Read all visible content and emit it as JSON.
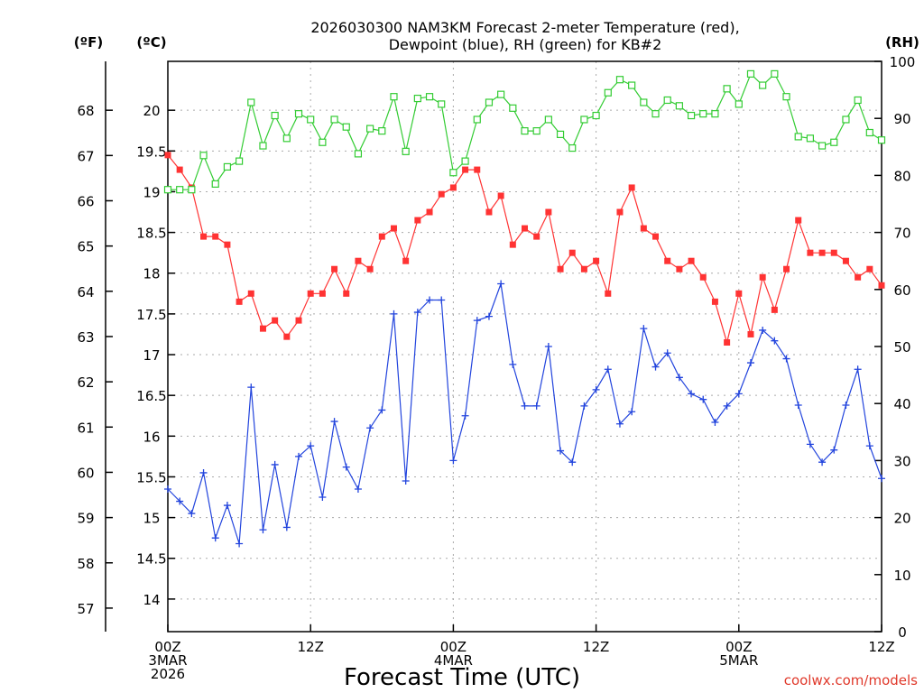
{
  "chart_data": {
    "type": "line",
    "title_lines": [
      "2026030300 NAM3KM Forecast 2-meter Temperature (red),",
      "Dewpoint (blue), RH (green) for KB#2"
    ],
    "xlabel": "Forecast Time (UTC)",
    "credit": "coolwx.com/models",
    "unit_labels": {
      "fahrenheit": "(ºF)",
      "celsius": "(ºC)",
      "rh": "(RH)"
    },
    "x_range_hours": [
      0,
      60
    ],
    "x_ticks": [
      {
        "hour": 0,
        "lines": [
          "00Z",
          "3MAR",
          "2026"
        ]
      },
      {
        "hour": 12,
        "lines": [
          "12Z"
        ]
      },
      {
        "hour": 24,
        "lines": [
          "00Z",
          "4MAR"
        ]
      },
      {
        "hour": 36,
        "lines": [
          "12Z"
        ]
      },
      {
        "hour": 48,
        "lines": [
          "00Z",
          "5MAR"
        ]
      },
      {
        "hour": 60,
        "lines": [
          "12Z"
        ]
      }
    ],
    "celsius_axis": {
      "min": 13.6,
      "max": 20.6,
      "ticks": [
        "14",
        "14.5",
        "15",
        "15.5",
        "16",
        "16.5",
        "17",
        "17.5",
        "18",
        "18.5",
        "19",
        "19.5",
        "20"
      ]
    },
    "fahrenheit_ticks": [
      "57",
      "58",
      "59",
      "60",
      "61",
      "62",
      "63",
      "64",
      "65",
      "66",
      "67",
      "68"
    ],
    "rh_axis": {
      "min": 0,
      "max": 100,
      "ticks": [
        "0",
        "10",
        "20",
        "30",
        "40",
        "50",
        "60",
        "70",
        "80",
        "90",
        "100"
      ]
    },
    "series": [
      {
        "name": "2-meter Temperature",
        "unit": "C",
        "color": "#ff3333",
        "marker": "filled-square",
        "values": [
          19.45,
          19.27,
          19.05,
          18.45,
          18.45,
          18.35,
          17.65,
          17.75,
          17.32,
          17.42,
          17.22,
          17.42,
          17.75,
          17.75,
          18.05,
          17.75,
          18.15,
          18.05,
          18.45,
          18.55,
          18.15,
          18.65,
          18.75,
          18.97,
          19.05,
          19.27,
          19.27,
          18.75,
          18.95,
          18.35,
          18.55,
          18.45,
          18.75,
          18.05,
          18.25,
          18.05,
          18.15,
          17.75,
          18.75,
          19.05,
          18.55,
          18.45,
          18.15,
          18.05,
          18.15,
          17.95,
          17.65,
          17.15,
          17.75,
          17.25,
          17.95,
          17.55,
          18.05,
          18.65,
          18.25,
          18.25,
          18.25,
          18.15,
          17.95,
          18.05,
          17.85
        ]
      },
      {
        "name": "Dewpoint",
        "unit": "C",
        "color": "#2244dd",
        "marker": "plus",
        "values": [
          15.35,
          15.2,
          15.05,
          15.55,
          14.75,
          15.15,
          14.68,
          16.6,
          14.85,
          15.65,
          14.88,
          15.75,
          15.88,
          15.25,
          16.18,
          15.62,
          15.35,
          16.1,
          16.32,
          17.5,
          15.45,
          17.52,
          17.67,
          17.67,
          15.7,
          16.25,
          17.42,
          17.47,
          17.87,
          16.88,
          16.37,
          16.37,
          17.1,
          15.82,
          15.68,
          16.37,
          16.57,
          16.82,
          16.15,
          16.3,
          17.32,
          16.85,
          17.02,
          16.72,
          16.52,
          16.45,
          16.17,
          16.37,
          16.52,
          16.9,
          17.3,
          17.17,
          16.95,
          16.38,
          15.9,
          15.68,
          15.83,
          16.38,
          16.82,
          15.88,
          15.48
        ]
      },
      {
        "name": "RH",
        "unit": "%",
        "color": "#33cc33",
        "marker": "open-square",
        "values": [
          77.5,
          77.5,
          77.5,
          83.5,
          78.5,
          81.5,
          82.5,
          92.8,
          85.2,
          90.5,
          86.5,
          90.8,
          89.8,
          85.8,
          89.8,
          88.5,
          83.8,
          88.2,
          87.8,
          93.8,
          84.2,
          93.5,
          93.8,
          92.5,
          80.5,
          82.5,
          89.8,
          92.8,
          94.2,
          91.8,
          87.8,
          87.8,
          89.8,
          87.2,
          84.8,
          89.8,
          90.5,
          94.5,
          96.8,
          95.8,
          92.8,
          90.8,
          93.2,
          92.2,
          90.5,
          90.8,
          90.8,
          95.2,
          92.5,
          97.8,
          95.8,
          97.8,
          93.8,
          86.8,
          86.5,
          85.2,
          85.8,
          89.8,
          93.2,
          87.5,
          86.2
        ]
      }
    ]
  }
}
